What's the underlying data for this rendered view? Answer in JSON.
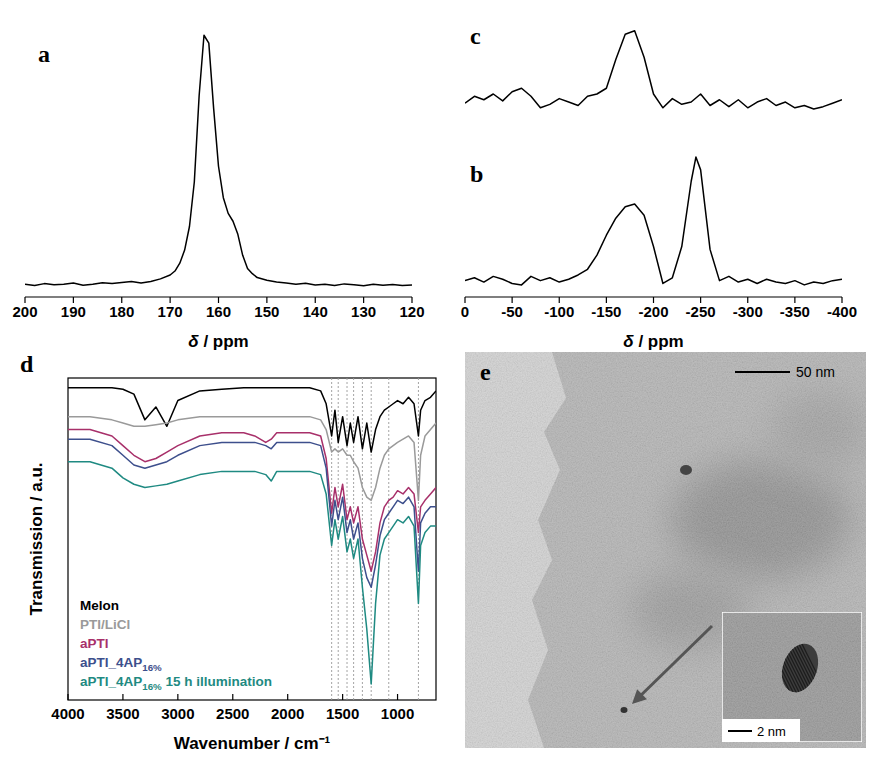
{
  "chart_data": [
    {
      "type": "line",
      "panel": "a",
      "x_label": "δ / ppm",
      "x": [
        200,
        198,
        196,
        194,
        192,
        190,
        188,
        186,
        184,
        182,
        180,
        178,
        176,
        174,
        172,
        170,
        169,
        168,
        167,
        166,
        165,
        164,
        163,
        162,
        161,
        160,
        159,
        158,
        157,
        156,
        155,
        154,
        153,
        152,
        150,
        148,
        146,
        144,
        142,
        140,
        138,
        136,
        134,
        132,
        130,
        128,
        126,
        124,
        122,
        120
      ],
      "values": [
        3,
        2.5,
        3.2,
        2.8,
        3,
        3.4,
        2.6,
        3,
        3.5,
        3.2,
        3.6,
        4,
        3.4,
        4,
        5,
        6.5,
        8,
        11,
        16,
        25,
        42,
        75,
        98,
        95,
        70,
        48,
        36,
        30,
        27,
        22,
        14,
        9,
        7,
        5.5,
        4.5,
        3.8,
        3.4,
        3,
        3.3,
        2.7,
        3,
        2.5,
        3.1,
        2.8,
        2.4,
        3,
        2.6,
        2.9,
        2.5,
        2.7
      ],
      "color": "#000000",
      "xlim": [
        200,
        120
      ],
      "xticks": [
        200,
        190,
        180,
        170,
        160,
        150,
        140,
        130,
        120
      ],
      "ylim": [
        0,
        100
      ],
      "tick_labels": "x"
    },
    {
      "type": "line",
      "panel": "c",
      "x": [
        0,
        -10,
        -20,
        -30,
        -40,
        -50,
        -60,
        -70,
        -80,
        -90,
        -100,
        -110,
        -120,
        -130,
        -140,
        -150,
        -160,
        -170,
        -180,
        -190,
        -200,
        -210,
        -220,
        -230,
        -240,
        -250,
        -260,
        -270,
        -280,
        -290,
        -300,
        -310,
        -320,
        -330,
        -340,
        -350,
        -360,
        -370,
        -380,
        -390,
        -400
      ],
      "values": [
        32,
        38,
        35,
        40,
        34,
        42,
        45,
        38,
        28,
        31,
        36,
        33,
        30,
        38,
        40,
        45,
        70,
        92,
        95,
        72,
        40,
        28,
        36,
        31,
        33,
        40,
        30,
        35,
        29,
        35,
        28,
        33,
        36,
        30,
        33,
        28,
        30,
        27,
        29,
        32,
        35
      ],
      "color": "#000000",
      "xlim": [
        0,
        -400
      ],
      "ylim": [
        0,
        100
      ],
      "tick_labels": false
    },
    {
      "type": "line",
      "panel": "b",
      "x_label": "δ / ppm",
      "x": [
        0,
        -10,
        -20,
        -30,
        -40,
        -50,
        -60,
        -70,
        -80,
        -90,
        -100,
        -110,
        -120,
        -130,
        -140,
        -150,
        -160,
        -170,
        -180,
        -190,
        -200,
        -210,
        -220,
        -230,
        -240,
        -245,
        -250,
        -260,
        -270,
        -280,
        -290,
        -300,
        -310,
        -320,
        -330,
        -340,
        -350,
        -360,
        -370,
        -380,
        -390,
        -400
      ],
      "values": [
        8,
        10,
        7,
        11,
        9,
        6,
        5,
        11,
        8,
        10,
        7,
        9,
        12,
        16,
        26,
        40,
        52,
        60,
        62,
        54,
        32,
        6,
        10,
        32,
        78,
        95,
        86,
        30,
        8,
        11,
        7,
        9,
        6,
        9,
        7,
        6,
        8,
        5,
        7,
        6,
        8,
        9
      ],
      "color": "#000000",
      "xlim": [
        0,
        -400
      ],
      "xticks": [
        0,
        -50,
        -100,
        -150,
        -200,
        -250,
        -300,
        -350,
        -400
      ],
      "ylim": [
        0,
        100
      ],
      "tick_labels": "x"
    },
    {
      "type": "line",
      "panel": "d",
      "x_label": "Wavenumber / cm⁻¹",
      "y_label": "Transmission / a.u.",
      "x": [
        4000,
        3800,
        3600,
        3500,
        3400,
        3300,
        3200,
        3100,
        3000,
        2800,
        2600,
        2400,
        2300,
        2200,
        2150,
        2100,
        2000,
        1800,
        1700,
        1650,
        1600,
        1570,
        1540,
        1500,
        1460,
        1430,
        1400,
        1360,
        1320,
        1280,
        1240,
        1200,
        1160,
        1120,
        1080,
        1040,
        1000,
        950,
        900,
        850,
        810,
        790,
        750,
        700,
        650
      ],
      "xlim": [
        4000,
        650
      ],
      "xticks": [
        4000,
        3500,
        3000,
        2500,
        2000,
        1500,
        1000
      ],
      "ylim": [
        0,
        100
      ],
      "tick_labels": "x",
      "legend": "lower left",
      "guides": [
        1600,
        1540,
        1460,
        1400,
        1320,
        1240,
        1080,
        810
      ],
      "series": [
        {
          "name": "Melon",
          "color": "#000000",
          "values": [
            97,
            97,
            97,
            96.5,
            95,
            87,
            91,
            85,
            93,
            96,
            96.5,
            97,
            97,
            97,
            97,
            97,
            97,
            97,
            96,
            92,
            82,
            90,
            80,
            88,
            79,
            86,
            80,
            88,
            78,
            86,
            77,
            84,
            88,
            90,
            91,
            92,
            93,
            92,
            94,
            92,
            82,
            90,
            93,
            94,
            96
          ]
        },
        {
          "name": "PTI/LiCl",
          "color": "#9a9a9a",
          "values": [
            88,
            88,
            87,
            86,
            85,
            85,
            85.5,
            86,
            87,
            88,
            88,
            88,
            88,
            88,
            88,
            88,
            88,
            88,
            87,
            84,
            77,
            78,
            77,
            78,
            76,
            76,
            74,
            72,
            66,
            63,
            62,
            66,
            72,
            76,
            78,
            79,
            80,
            81,
            82,
            80,
            62,
            76,
            82,
            84,
            86
          ]
        },
        {
          "name": "aPTI",
          "color": "#a8306a",
          "values": [
            84,
            84,
            82,
            79,
            76,
            74,
            75,
            77,
            79,
            82,
            83,
            83,
            82,
            80,
            81,
            83,
            83,
            83,
            82,
            75,
            58,
            66,
            60,
            67,
            56,
            60,
            55,
            60,
            50,
            45,
            40,
            46,
            55,
            60,
            62,
            63,
            65,
            64,
            66,
            64,
            52,
            60,
            62,
            64,
            66
          ]
        },
        {
          "name": "aPTI_4AP16%",
          "color": "#3d4f8c",
          "values": [
            81,
            81,
            79,
            76,
            73,
            72,
            73,
            74,
            76,
            79,
            80,
            80,
            80,
            79,
            78,
            80,
            80,
            80,
            79,
            72,
            54,
            62,
            56,
            63,
            52,
            56,
            50,
            55,
            44,
            38,
            35,
            42,
            51,
            56,
            58,
            60,
            62,
            61,
            63,
            60,
            40,
            55,
            58,
            60,
            60
          ]
        },
        {
          "name": "aPTI_4AP16% 15 h illumination",
          "color": "#1f8a82",
          "values": [
            74,
            74,
            72,
            69,
            67,
            66,
            66.5,
            67,
            68,
            70,
            71,
            71,
            71,
            70,
            68,
            71,
            71,
            71,
            70,
            64,
            48,
            56,
            50,
            57,
            46,
            50,
            44,
            50,
            35,
            22,
            5,
            30,
            45,
            50,
            52,
            54,
            56,
            55,
            57,
            54,
            30,
            48,
            52,
            54,
            54
          ]
        }
      ]
    },
    {
      "type": "image",
      "panel": "e",
      "scale_bar": "50 nm",
      "inset_scale_bar": "2 nm"
    }
  ]
}
